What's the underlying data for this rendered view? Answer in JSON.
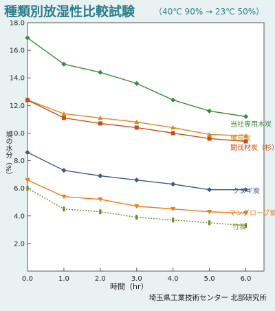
{
  "title": "種類別放湿性比較試験",
  "subtitle": "（40℃ 90% → 23℃ 50%）",
  "credit": "埼玉県工業技術センター 北部研究所",
  "chart_data": {
    "type": "line",
    "xlabel": "時間（hr）",
    "ylabel": "炭の水分（%）",
    "xlim": [
      0,
      6.5
    ],
    "ylim": [
      0,
      18
    ],
    "x_ticks": [
      "0.0",
      "1.0",
      "2.0",
      "3.0",
      "4.0",
      "5.0",
      "6.0"
    ],
    "y_ticks": [
      "2.0",
      "4.0",
      "6.0",
      "8.0",
      "10.0",
      "12.0",
      "14.0",
      "16.0",
      "18.0"
    ],
    "grid": false,
    "x": [
      0,
      1,
      2,
      3,
      4,
      5,
      6
    ],
    "series": [
      {
        "name": "当社専用木炭",
        "values": [
          16.9,
          15.0,
          14.4,
          13.6,
          12.4,
          11.6,
          11.2
        ],
        "color": "#3a8a3a",
        "marker": "diamond",
        "dashed": false
      },
      {
        "name": "備長炭",
        "values": [
          12.4,
          11.4,
          11.1,
          10.8,
          10.4,
          9.9,
          9.8
        ],
        "color": "#d98a1e",
        "marker": "triangle-up",
        "dashed": false
      },
      {
        "name": "間伐材炭（杉）",
        "values": [
          12.4,
          11.1,
          10.7,
          10.4,
          10.0,
          9.6,
          9.4
        ],
        "color": "#c84c14",
        "marker": "square",
        "dashed": false
      },
      {
        "name": "クヌギ炭",
        "values": [
          8.6,
          7.3,
          6.9,
          6.6,
          6.3,
          5.9,
          5.9
        ],
        "color": "#3c5a8a",
        "marker": "diamond",
        "dashed": false
      },
      {
        "name": "マングローブ炭",
        "values": [
          6.6,
          5.4,
          5.2,
          4.7,
          4.5,
          4.3,
          4.2
        ],
        "color": "#f07818",
        "marker": "triangle-down",
        "dashed": false
      },
      {
        "name": "竹炭",
        "values": [
          6.0,
          4.5,
          4.3,
          3.9,
          3.7,
          3.5,
          3.3
        ],
        "color": "#6a8a2a",
        "marker": "bar",
        "dashed": true
      }
    ]
  }
}
